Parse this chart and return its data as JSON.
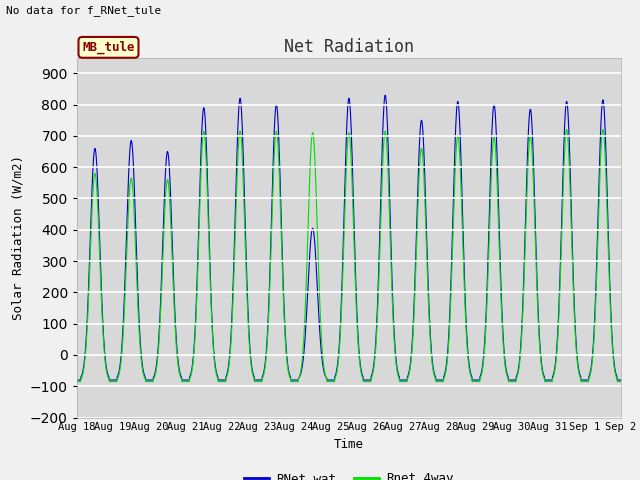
{
  "title": "Net Radiation",
  "xlabel": "Time",
  "ylabel": "Solar Radiation (W/m2)",
  "ylim": [
    -200,
    950
  ],
  "yticks": [
    -200,
    -100,
    0,
    100,
    200,
    300,
    400,
    500,
    600,
    700,
    800,
    900
  ],
  "plot_bg_color": "#d8d8d8",
  "fig_bg_color": "#f0f0f0",
  "legend_bg_color": "#ffffff",
  "grid_color": "#f8f8f8",
  "no_data_text": "No data for f_RNet_tule",
  "annotation_text": "MB_tule",
  "line1_color": "#0000cc",
  "line2_color": "#00dd00",
  "line1_label": "RNet_wat",
  "line2_label": "Rnet_4way",
  "n_days": 15,
  "start_day": 18,
  "peak_values_blue": [
    660,
    685,
    650,
    790,
    820,
    800,
    405,
    820,
    830,
    750,
    810,
    800,
    785,
    810,
    815
  ],
  "peak_values_green": [
    580,
    565,
    560,
    715,
    715,
    715,
    710,
    710,
    715,
    660,
    700,
    695,
    700,
    720,
    720
  ],
  "night_value_blue": -80,
  "night_value_green": -85,
  "figsize": [
    6.4,
    4.8
  ],
  "dpi": 100
}
